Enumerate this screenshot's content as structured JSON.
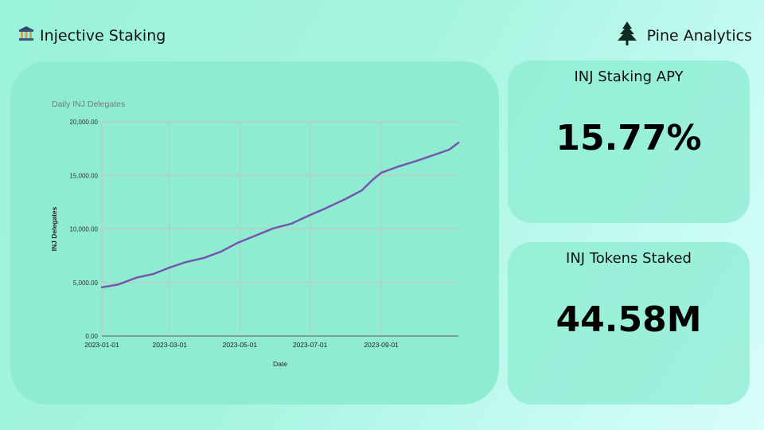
{
  "header": {
    "title": "Injective Staking",
    "title_icon": "bank-icon",
    "brand": "Pine Analytics",
    "brand_icon": "pine-tree-icon"
  },
  "stats": {
    "apy": {
      "label": "INJ Staking APY",
      "value": "15.77%"
    },
    "staked": {
      "label": "INJ Tokens Staked",
      "value": "44.58M"
    }
  },
  "colors": {
    "line": "#7456b0",
    "card": "#8fecd0",
    "grid": "#b9cfc6"
  },
  "chart_data": {
    "type": "line",
    "title": "Daily INJ Delegates",
    "xlabel": "Date",
    "ylabel": "INJ Delegates",
    "ylim": [
      0,
      20000
    ],
    "yticks": [
      "0.00",
      "5,000.00",
      "10,000.00",
      "15,000.00",
      "20,000.00"
    ],
    "xticks": [
      "2023-01-01",
      "2023-03-01",
      "2023-05-01",
      "2023-07-01",
      "2023-09-01"
    ],
    "xlim": [
      "2023-01-01",
      "2023-11-07"
    ],
    "grid": true,
    "series": [
      {
        "x": [
          "2023-01-01",
          "2023-01-15",
          "2023-01-31",
          "2023-02-15",
          "2023-03-01",
          "2023-03-15",
          "2023-03-31",
          "2023-04-15",
          "2023-04-29",
          "2023-05-15",
          "2023-05-30",
          "2023-06-15",
          "2023-06-30",
          "2023-07-15",
          "2023-07-31",
          "2023-08-15",
          "2023-08-25",
          "2023-09-01",
          "2023-09-15",
          "2023-09-30",
          "2023-10-15",
          "2023-10-30",
          "2023-11-07"
        ],
        "y": [
          4550,
          4800,
          5450,
          5800,
          6400,
          6900,
          7300,
          7900,
          8700,
          9400,
          10050,
          10500,
          11250,
          11950,
          12750,
          13600,
          14650,
          15250,
          15800,
          16300,
          16850,
          17400,
          18050
        ]
      }
    ]
  }
}
